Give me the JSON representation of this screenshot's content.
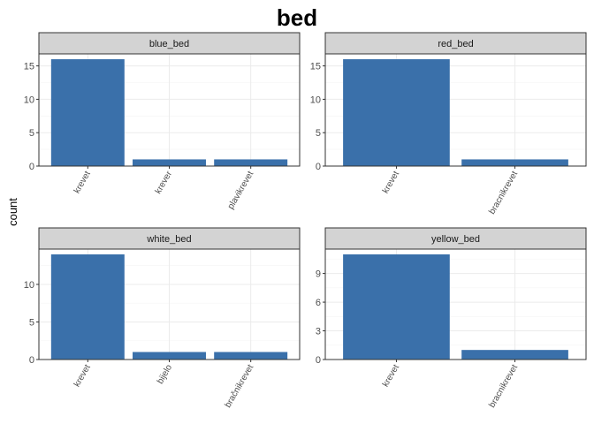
{
  "title": "bed",
  "ylabel": "count",
  "colors": {
    "bar": "#3a70aa",
    "strip_fill": "#d3d3d3",
    "strip_border": "#333333",
    "grid": "#ebebeb",
    "panel_border": "#333333"
  },
  "chart_data": [
    {
      "type": "bar",
      "panel": "blue_bed",
      "categories": [
        "krevet",
        "krever",
        "plavikrevet"
      ],
      "values": [
        16,
        1,
        1
      ],
      "yticks": [
        0,
        5,
        10,
        15
      ],
      "ylim": [
        0,
        16.8
      ]
    },
    {
      "type": "bar",
      "panel": "red_bed",
      "categories": [
        "krevet",
        "bracnikrevet"
      ],
      "values": [
        16,
        1
      ],
      "yticks": [
        0,
        5,
        10,
        15
      ],
      "ylim": [
        0,
        16.8
      ]
    },
    {
      "type": "bar",
      "panel": "white_bed",
      "categories": [
        "krevet",
        "bijelo",
        "bračnikrevet"
      ],
      "values": [
        14,
        1,
        1
      ],
      "yticks": [
        0,
        5,
        10
      ],
      "ylim": [
        0,
        14.7
      ]
    },
    {
      "type": "bar",
      "panel": "yellow_bed",
      "categories": [
        "krevet",
        "bracnikrevet"
      ],
      "values": [
        11,
        1
      ],
      "yticks": [
        0,
        3,
        6,
        9
      ],
      "ylim": [
        0,
        11.55
      ]
    }
  ]
}
